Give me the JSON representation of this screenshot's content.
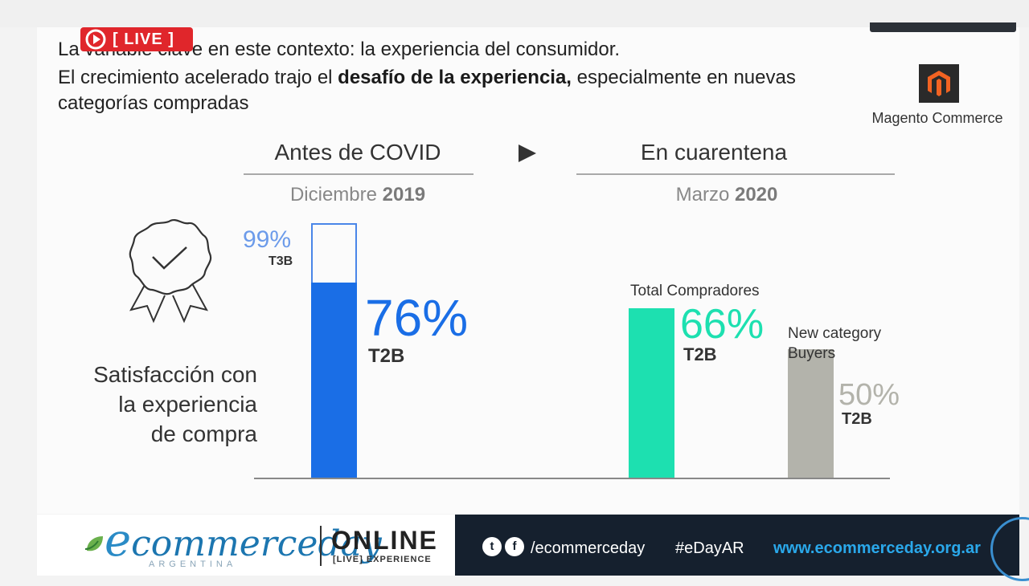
{
  "live_badge": {
    "label": "[ LIVE ]"
  },
  "headline": {
    "line1": "La variable clave en este contexto: la experiencia del consumidor.",
    "line2_prefix": "El crecimiento acelerado trajo el ",
    "line2_bold": "desafío de la experiencia,",
    "line2_suffix": " especialmente en nuevas",
    "line3": "categorías compradas"
  },
  "logo": {
    "text": "Magento Commerce",
    "icon": "magento-logo-icon"
  },
  "periods": {
    "before": {
      "title": "Antes de COVID",
      "month": "Diciembre ",
      "year": "2019"
    },
    "after": {
      "title": "En cuarentena",
      "month": "Marzo ",
      "year": "2020"
    }
  },
  "metric_label": {
    "line1": "Satisfacción con",
    "line2": "la  experiencia",
    "line3": "de compra"
  },
  "chart_data": {
    "type": "bar",
    "ylim": [
      0,
      100
    ],
    "bars": [
      {
        "group": "Diciembre 2019",
        "value": 99,
        "label": "99%",
        "metric": "T3B",
        "style": "outline",
        "color": "#4a86e8"
      },
      {
        "group": "Diciembre 2019",
        "value": 76,
        "label": "76%",
        "metric": "T2B",
        "style": "filled",
        "color": "#1a6ee6"
      },
      {
        "group": "Marzo 2020",
        "name": "Total Compradores",
        "value": 66,
        "label": "66%",
        "metric": "T2B",
        "color": "#1de0b0"
      },
      {
        "group": "Marzo 2020",
        "name": "New category Buyers",
        "value": 50,
        "label": "50%",
        "metric": "T2B",
        "color": "#b3b3ab"
      }
    ]
  },
  "labels": {
    "total_compradores": "Total Compradores",
    "new_category_line1": "New category",
    "new_category_line2": "Buyers"
  },
  "banner": {
    "brand_e": "e",
    "brand_rest": "commerceday",
    "country": "ARGENTINA",
    "online": "ONLINE",
    "live_experience": "[LIVE] EXPERIENCE",
    "social_handle": "/ecommerceday",
    "hashtag": "#eDayAR",
    "website": "www.ecommerceday.org.ar"
  },
  "colors": {
    "live_red": "#e0262b",
    "blue": "#1a6ee6",
    "light_blue": "#4a86e8",
    "teal": "#1de0b0",
    "gray": "#b3b3ab"
  }
}
